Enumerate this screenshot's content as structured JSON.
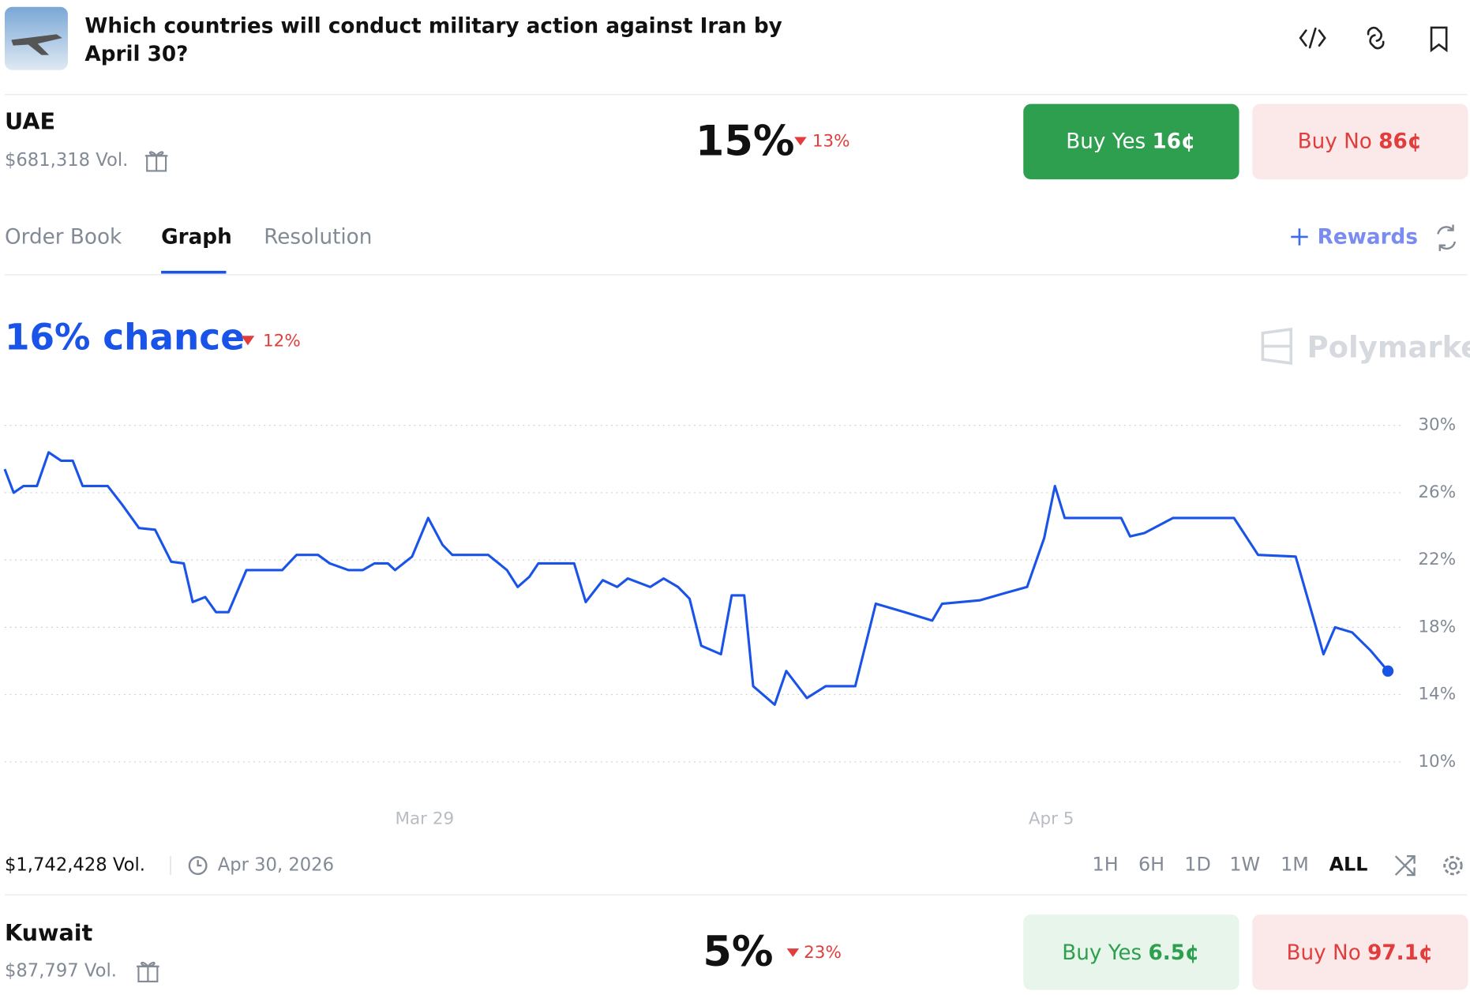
{
  "header": {
    "title_lines": [
      "Which countries will conduct military action against Iran by",
      "April 30?"
    ]
  },
  "markets": [
    {
      "name": "UAE",
      "volume": "$681,318 Vol.",
      "chance": "15%",
      "change": "13%",
      "buy_yes": "Buy Yes",
      "yes_price": "16¢",
      "buy_no": "Buy No",
      "no_price": "86¢"
    },
    {
      "name": "Kuwait",
      "volume": "$87,797 Vol.",
      "chance": "5%",
      "change": "23%",
      "buy_yes": "Buy Yes",
      "yes_price": "6.5¢",
      "buy_no": "Buy No",
      "no_price": "97.1¢"
    }
  ],
  "tabs": [
    "Order Book",
    "Graph",
    "Resolution"
  ],
  "rewards": "Rewards",
  "graph_header": {
    "chance": "16% chance",
    "change": "12%",
    "brand": "Polymarket"
  },
  "chart_data": {
    "type": "line",
    "color": "#1a53e8",
    "grid": true,
    "x": [
      24.31,
      24.41,
      24.52,
      24.67,
      24.8,
      24.94,
      25.07,
      25.18,
      25.46,
      25.62,
      25.81,
      25.99,
      26.17,
      26.31,
      26.41,
      26.55,
      26.67,
      26.81,
      27.01,
      27.41,
      27.57,
      27.81,
      27.94,
      28.15,
      28.31,
      28.44,
      28.59,
      28.67,
      28.86,
      29.04,
      29.2,
      29.31,
      29.71,
      29.92,
      30.04,
      30.17,
      30.27,
      30.67,
      30.8,
      30.99,
      31.15,
      31.27,
      31.52,
      31.67,
      31.83,
      31.96,
      32.09,
      32.31,
      32.43,
      32.57,
      32.67,
      32.91,
      33.04,
      33.27,
      33.48,
      33.81,
      34.04,
      34.36,
      34.67,
      34.78,
      35.2,
      35.46,
      35.73,
      35.92,
      36.04,
      36.15,
      36.78,
      36.88,
      37.04,
      37.36,
      38.04,
      38.31,
      38.73,
      38.94,
      39.04,
      39.17,
      39.36,
      39.57,
      39.76
    ],
    "values": [
      27.4,
      26.0,
      26.4,
      26.4,
      28.4,
      27.9,
      27.9,
      26.4,
      26.4,
      25.3,
      23.9,
      23.8,
      21.9,
      21.8,
      19.5,
      19.8,
      18.9,
      18.9,
      21.4,
      21.4,
      22.3,
      22.3,
      21.8,
      21.4,
      21.4,
      21.8,
      21.8,
      21.4,
      22.2,
      24.5,
      22.9,
      22.3,
      22.3,
      21.4,
      20.4,
      21.0,
      21.8,
      21.8,
      19.5,
      20.8,
      20.4,
      20.9,
      20.4,
      20.9,
      20.4,
      19.7,
      16.9,
      16.4,
      19.9,
      19.9,
      14.5,
      13.4,
      15.4,
      13.8,
      14.5,
      14.5,
      19.4,
      18.9,
      18.4,
      19.4,
      19.6,
      20.0,
      20.4,
      23.3,
      26.4,
      24.5,
      24.5,
      23.4,
      23.6,
      24.5,
      24.5,
      22.3,
      22.2,
      18.3,
      16.4,
      18.0,
      17.7,
      16.6,
      15.4
    ],
    "xlim": [
      24.31,
      39.94
    ],
    "ylim": [
      10,
      30
    ],
    "xticks": [
      {
        "value": 29,
        "label": "Mar 29"
      },
      {
        "value": 36,
        "label": "Apr 5"
      }
    ],
    "yticks": [
      {
        "value": 30,
        "label": "30%"
      },
      {
        "value": 26,
        "label": "26%"
      },
      {
        "value": 22,
        "label": "22%"
      },
      {
        "value": 18,
        "label": "18%"
      },
      {
        "value": 14,
        "label": "14%"
      },
      {
        "value": 10,
        "label": "10%"
      }
    ]
  },
  "footer": {
    "volume": "$1,742,428 Vol.",
    "end_date": "Apr 30, 2026",
    "ranges": [
      "1H",
      "6H",
      "1D",
      "1W",
      "1M",
      "ALL"
    ]
  }
}
